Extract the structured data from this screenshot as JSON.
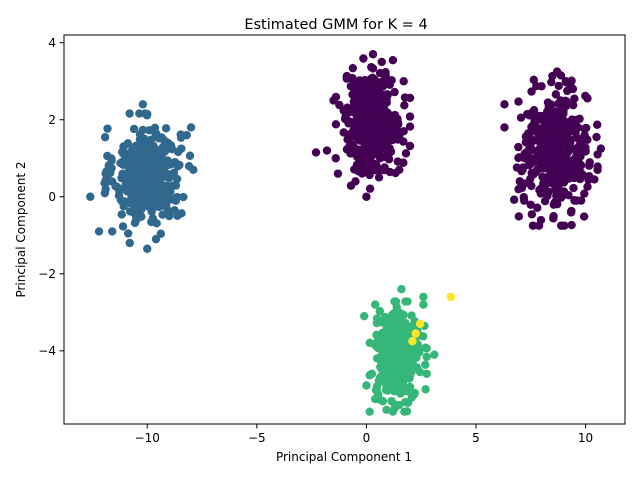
{
  "chart_data": {
    "type": "scatter",
    "title": "Estimated GMM for K = 4",
    "xlabel": "Principal Component 1",
    "ylabel": "Principal Component 2",
    "xlim": [
      -13.8,
      11.8
    ],
    "ylim": [
      -5.9,
      4.2
    ],
    "xticks": [
      -10,
      -5,
      0,
      5,
      10
    ],
    "yticks": [
      -4,
      -2,
      0,
      2,
      4
    ],
    "grid": false,
    "legend": "none",
    "series": [
      {
        "name": "cluster-blue",
        "color": "#31688e",
        "center": [
          -10.0,
          0.6
        ],
        "spread": [
          0.75,
          0.6
        ],
        "count": 420,
        "extra_points": [
          [
            -12.6,
            0.0
          ],
          [
            -12.2,
            -0.9
          ],
          [
            -11.6,
            -0.9
          ],
          [
            -10.8,
            -1.2
          ],
          [
            -10.0,
            -1.35
          ],
          [
            -8.0,
            1.8
          ],
          [
            -7.9,
            0.7
          ],
          [
            -10.2,
            2.4
          ],
          [
            -8.2,
            1.6
          ],
          [
            -11.9,
            0.6
          ],
          [
            -11.9,
            0.2
          ],
          [
            -9.0,
            -0.5
          ],
          [
            -9.6,
            -1.1
          ],
          [
            -10.5,
            -0.6
          ]
        ]
      },
      {
        "name": "cluster-purple-left",
        "color": "#440154",
        "center": [
          0.3,
          1.9
        ],
        "spread": [
          0.65,
          0.65
        ],
        "count": 380,
        "extra_points": [
          [
            -2.3,
            1.15
          ],
          [
            -1.8,
            1.2
          ],
          [
            -1.4,
            1.0
          ],
          [
            -1.3,
            0.6
          ],
          [
            0.0,
            0.0
          ],
          [
            0.3,
            3.7
          ],
          [
            0.7,
            3.5
          ],
          [
            1.7,
            3.0
          ],
          [
            1.5,
            0.7
          ],
          [
            -0.5,
            0.4
          ],
          [
            -1.5,
            2.5
          ],
          [
            1.7,
            1.7
          ]
        ]
      },
      {
        "name": "cluster-purple-right",
        "color": "#440154",
        "center": [
          8.6,
          1.2
        ],
        "spread": [
          0.75,
          0.75
        ],
        "count": 400,
        "extra_points": [
          [
            6.3,
            2.4
          ],
          [
            6.3,
            1.8
          ],
          [
            7.6,
            -0.75
          ],
          [
            9.6,
            -0.1
          ],
          [
            9.8,
            -0.1
          ],
          [
            10.7,
            1.25
          ],
          [
            10.5,
            1.55
          ],
          [
            10.4,
            0.45
          ],
          [
            8.7,
            3.25
          ],
          [
            7.0,
            0.4
          ],
          [
            7.2,
            -0.1
          ],
          [
            9.1,
            3.0
          ]
        ]
      },
      {
        "name": "cluster-green",
        "color": "#35b779",
        "center": [
          1.45,
          -4.15
        ],
        "spread": [
          0.5,
          0.55
        ],
        "count": 380,
        "extra_points": [
          [
            -0.1,
            -3.1
          ],
          [
            0.4,
            -2.8
          ],
          [
            1.3,
            -5.4
          ],
          [
            2.6,
            -2.6
          ],
          [
            2.6,
            -2.8
          ],
          [
            3.1,
            -4.1
          ],
          [
            0.4,
            -5.25
          ],
          [
            1.9,
            -5.35
          ],
          [
            1.6,
            -2.4
          ],
          [
            2.7,
            -5.0
          ],
          [
            0.0,
            -4.9
          ]
        ]
      },
      {
        "name": "cluster-yellow",
        "color": "#fde725",
        "points": [
          [
            3.85,
            -2.6
          ],
          [
            2.25,
            -3.55
          ],
          [
            2.45,
            -3.3
          ],
          [
            2.1,
            -3.75
          ]
        ]
      }
    ]
  }
}
